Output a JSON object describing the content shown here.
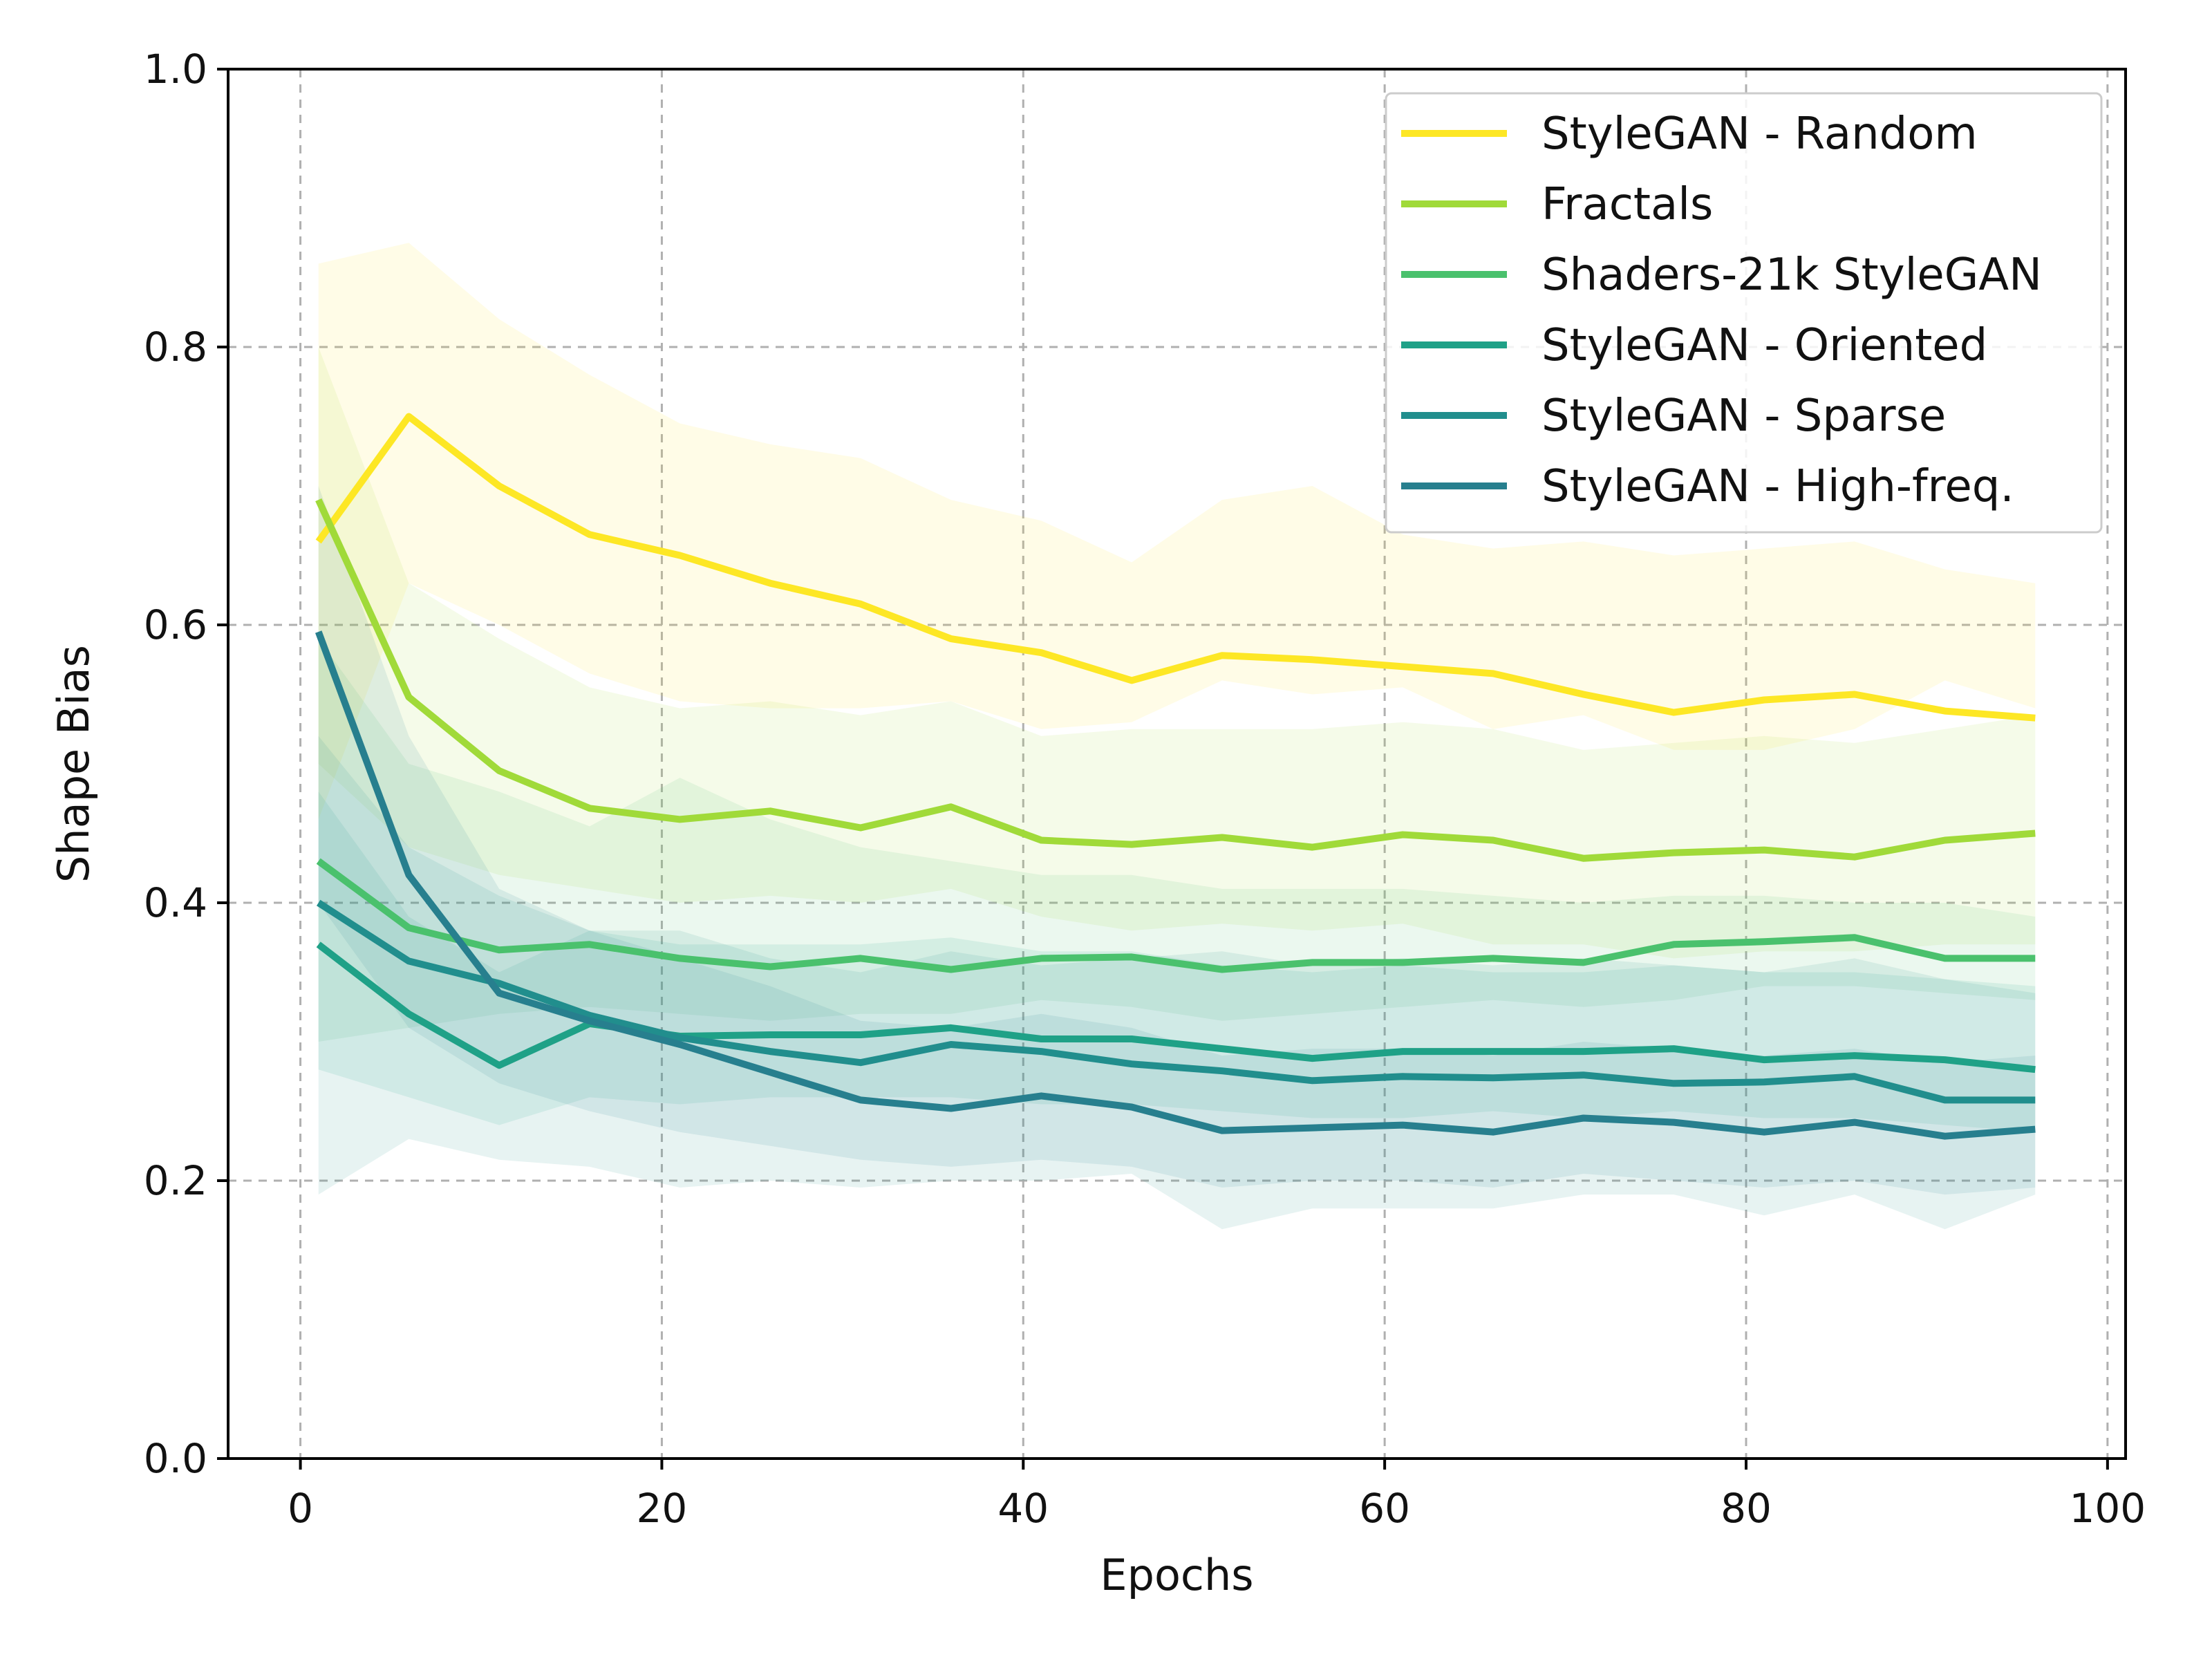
{
  "chart_data": {
    "type": "line",
    "title": "",
    "xlabel": "Epochs",
    "ylabel": "Shape Bias",
    "xlim": [
      -4,
      101
    ],
    "ylim": [
      0,
      1
    ],
    "xticks": [
      0,
      20,
      40,
      60,
      80,
      100
    ],
    "xtick_labels": [
      "0",
      "20",
      "40",
      "60",
      "80",
      "100"
    ],
    "yticks": [
      0.0,
      0.2,
      0.4,
      0.6,
      0.8,
      1.0
    ],
    "ytick_labels": [
      "0.0",
      "0.2",
      "0.4",
      "0.6",
      "0.8",
      "1.0"
    ],
    "grid": true,
    "legend_position": "top-right",
    "x": [
      1,
      6,
      11,
      16,
      21,
      26,
      31,
      36,
      41,
      46,
      51,
      56,
      61,
      66,
      71,
      76,
      81,
      86,
      91,
      96
    ],
    "series": [
      {
        "name": "StyleGAN - Random",
        "color": "#fde725",
        "values": [
          0.66,
          0.75,
          0.7,
          0.665,
          0.65,
          0.63,
          0.615,
          0.59,
          0.58,
          0.56,
          0.578,
          0.575,
          0.57,
          0.565,
          0.55,
          0.537,
          0.546,
          0.55,
          0.538,
          0.533
        ],
        "lower": [
          0.46,
          0.63,
          0.6,
          0.565,
          0.545,
          0.54,
          0.54,
          0.545,
          0.525,
          0.53,
          0.56,
          0.55,
          0.555,
          0.525,
          0.535,
          0.51,
          0.51,
          0.525,
          0.56,
          0.54
        ],
        "upper": [
          0.86,
          0.875,
          0.82,
          0.78,
          0.745,
          0.73,
          0.72,
          0.69,
          0.675,
          0.645,
          0.69,
          0.7,
          0.665,
          0.655,
          0.66,
          0.65,
          0.655,
          0.66,
          0.64,
          0.63
        ]
      },
      {
        "name": "Fractals",
        "color": "#a0da39",
        "values": [
          0.69,
          0.548,
          0.495,
          0.468,
          0.46,
          0.466,
          0.454,
          0.469,
          0.445,
          0.442,
          0.447,
          0.44,
          0.449,
          0.445,
          0.432,
          0.436,
          0.438,
          0.433,
          0.445,
          0.45
        ],
        "lower": [
          0.5,
          0.44,
          0.42,
          0.41,
          0.4,
          0.405,
          0.4,
          0.41,
          0.39,
          0.38,
          0.385,
          0.38,
          0.385,
          0.37,
          0.37,
          0.36,
          0.365,
          0.365,
          0.37,
          0.37
        ],
        "upper": [
          0.8,
          0.63,
          0.59,
          0.555,
          0.54,
          0.545,
          0.535,
          0.545,
          0.52,
          0.525,
          0.525,
          0.525,
          0.53,
          0.525,
          0.51,
          0.515,
          0.52,
          0.515,
          0.525,
          0.535
        ]
      },
      {
        "name": "Shaders-21k StyleGAN",
        "color": "#4ac16d",
        "values": [
          0.43,
          0.382,
          0.366,
          0.37,
          0.36,
          0.354,
          0.36,
          0.352,
          0.36,
          0.361,
          0.352,
          0.357,
          0.357,
          0.36,
          0.357,
          0.37,
          0.372,
          0.375,
          0.36,
          0.36
        ],
        "lower": [
          0.3,
          0.31,
          0.32,
          0.325,
          0.32,
          0.315,
          0.32,
          0.32,
          0.33,
          0.325,
          0.315,
          0.32,
          0.325,
          0.33,
          0.325,
          0.33,
          0.34,
          0.34,
          0.335,
          0.33
        ],
        "upper": [
          0.59,
          0.5,
          0.48,
          0.455,
          0.49,
          0.46,
          0.44,
          0.43,
          0.42,
          0.42,
          0.41,
          0.41,
          0.41,
          0.405,
          0.4,
          0.405,
          0.405,
          0.4,
          0.4,
          0.39
        ]
      },
      {
        "name": "StyleGAN - Oriented",
        "color": "#1fa187",
        "values": [
          0.37,
          0.32,
          0.283,
          0.313,
          0.304,
          0.305,
          0.305,
          0.31,
          0.302,
          0.302,
          0.295,
          0.288,
          0.293,
          0.293,
          0.293,
          0.295,
          0.287,
          0.29,
          0.287,
          0.28
        ],
        "lower": [
          0.28,
          0.26,
          0.24,
          0.26,
          0.255,
          0.26,
          0.26,
          0.26,
          0.255,
          0.255,
          0.25,
          0.245,
          0.245,
          0.25,
          0.245,
          0.25,
          0.245,
          0.245,
          0.24,
          0.235
        ],
        "upper": [
          0.48,
          0.39,
          0.35,
          0.38,
          0.37,
          0.37,
          0.37,
          0.375,
          0.365,
          0.365,
          0.355,
          0.35,
          0.355,
          0.35,
          0.35,
          0.355,
          0.35,
          0.35,
          0.345,
          0.34
        ]
      },
      {
        "name": "StyleGAN - Sparse",
        "color": "#218e8d",
        "values": [
          0.4,
          0.358,
          0.342,
          0.319,
          0.303,
          0.293,
          0.285,
          0.298,
          0.293,
          0.284,
          0.279,
          0.272,
          0.275,
          0.274,
          0.276,
          0.27,
          0.271,
          0.275,
          0.258,
          0.258
        ],
        "lower": [
          0.19,
          0.23,
          0.215,
          0.21,
          0.195,
          0.2,
          0.195,
          0.2,
          0.2,
          0.205,
          0.165,
          0.18,
          0.18,
          0.18,
          0.19,
          0.19,
          0.175,
          0.19,
          0.165,
          0.19
        ],
        "upper": [
          0.52,
          0.44,
          0.405,
          0.38,
          0.38,
          0.36,
          0.35,
          0.365,
          0.355,
          0.36,
          0.365,
          0.355,
          0.36,
          0.355,
          0.36,
          0.355,
          0.35,
          0.36,
          0.345,
          0.335
        ]
      },
      {
        "name": "StyleGAN - High-freq.",
        "color": "#277f8e",
        "values": [
          0.595,
          0.42,
          0.335,
          0.315,
          0.298,
          0.278,
          0.258,
          0.252,
          0.261,
          0.253,
          0.236,
          0.238,
          0.24,
          0.235,
          0.245,
          0.242,
          0.235,
          0.242,
          0.232,
          0.237
        ],
        "lower": [
          0.4,
          0.31,
          0.27,
          0.25,
          0.235,
          0.225,
          0.215,
          0.21,
          0.215,
          0.21,
          0.195,
          0.2,
          0.2,
          0.195,
          0.205,
          0.2,
          0.195,
          0.2,
          0.19,
          0.195
        ],
        "upper": [
          0.7,
          0.52,
          0.41,
          0.38,
          0.36,
          0.34,
          0.315,
          0.31,
          0.32,
          0.31,
          0.29,
          0.295,
          0.295,
          0.29,
          0.3,
          0.295,
          0.29,
          0.295,
          0.285,
          0.29
        ]
      }
    ]
  }
}
